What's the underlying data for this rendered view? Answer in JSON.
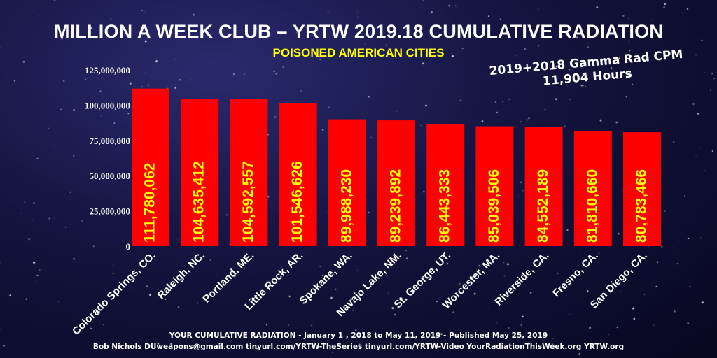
{
  "title": "MILLION A WEEK CLUB – YRTW 2019.18 CUMULATIVE RADIATION",
  "subtitle": "POISONED AMERICAN CITIES",
  "annotation": {
    "line1": "2019+2018 Gamma Rad CPM",
    "line2": "11,904 Hours"
  },
  "footer": {
    "line1": "YOUR CUMULATIVE RADIATION - January 1 , 2018 to May 11, 2019  -  Published May 25, 2019",
    "line2": "Bob Nichols  DUweapons@gmail.com  tinyurl.com/YRTW-TheSeries  tinyurl.com/YRTW-Video  YourRadiationThisWeek.org  YRTW.org"
  },
  "colors": {
    "bar": "#ff0000",
    "data_label": "#ffff00",
    "subtitle": "#ffff00",
    "text": "#ffffff"
  },
  "chart_data": {
    "type": "bar",
    "title": "MILLION A WEEK CLUB – YRTW 2019.18 CUMULATIVE RADIATION",
    "subtitle": "POISONED AMERICAN CITIES",
    "xlabel": "",
    "ylabel": "",
    "categories": [
      "Colorado Springs, CO.",
      "Raleigh, NC.",
      "Portland, ME.",
      "Little Rock, AR.",
      "Spokane, WA.",
      "Navajo Lake, NM.",
      "St. George, UT.",
      "Worcester, MA.",
      "Riverside, CA.",
      "Fresno, CA.",
      "San Diego, CA."
    ],
    "values": [
      111780062,
      104635412,
      104592557,
      101546626,
      89988230,
      89239892,
      86443333,
      85039506,
      84552189,
      81810660,
      80783466
    ],
    "data_labels": [
      "111,780,062",
      "104,635,412",
      "104,592,557",
      "101,546,626",
      "89,988,230",
      "89,239,892",
      "86,443,333",
      "85,039,506",
      "84,552,189",
      "81,810,660",
      "80,783,466"
    ],
    "yticks": [
      0,
      25000000,
      50000000,
      75000000,
      100000000,
      125000000
    ],
    "ytick_labels": [
      "0",
      "25,000,000",
      "50,000,000",
      "75,000,000",
      "100,000,000",
      "125,000,000"
    ],
    "ylim": [
      0,
      125000000
    ],
    "grid": false,
    "legend": "none"
  }
}
